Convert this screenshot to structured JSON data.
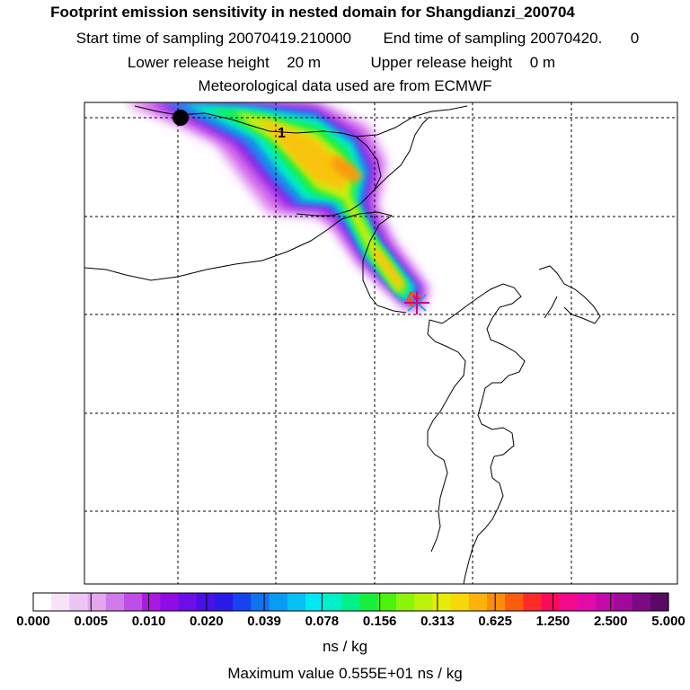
{
  "header": {
    "title": "Footprint emission sensitivity in nested domain for Shangdianzi_200704",
    "start_label": "Start time of sampling",
    "start_value": "20070419.210000",
    "end_label": "End time of sampling",
    "end_value": "20070420.",
    "end_value_tail": "0",
    "lower_label": "Lower release height",
    "lower_value": "20 m",
    "upper_label": "Upper release height",
    "upper_value": "0 m",
    "met_line": "Meteorological data used are from ECMWF"
  },
  "map": {
    "marker_label": "1"
  },
  "legend": {
    "ticks": [
      "0.000",
      "0.005",
      "0.010",
      "0.020",
      "0.039",
      "0.078",
      "0.156",
      "0.313",
      "0.625",
      "1.250",
      "2.500",
      "5.000"
    ],
    "colors": [
      "#ffffff",
      "#f6e3f8",
      "#ecc6f3",
      "#e4a6ee",
      "#cf7be9",
      "#be4ee5",
      "#a919e2",
      "#8f0ce7",
      "#6b0ee8",
      "#4a10e8",
      "#2a1ae8",
      "#1743ee",
      "#0f72f0",
      "#0a9bf3",
      "#07c0f5",
      "#00e8f0",
      "#00f0c8",
      "#00f08a",
      "#16f03c",
      "#4af20c",
      "#8af50a",
      "#bdf10a",
      "#e6ec08",
      "#f7d70a",
      "#fbb30a",
      "#fc8c0c",
      "#fc5c10",
      "#fd2a2a",
      "#fb0a5a",
      "#f40a8c",
      "#e20aa8",
      "#c40aa8",
      "#a1089c",
      "#7c0a84",
      "#5a0a66"
    ],
    "unit": "ns / kg",
    "max_label": "Maximum value",
    "max_value": "0.555E+01 ns / kg"
  }
}
